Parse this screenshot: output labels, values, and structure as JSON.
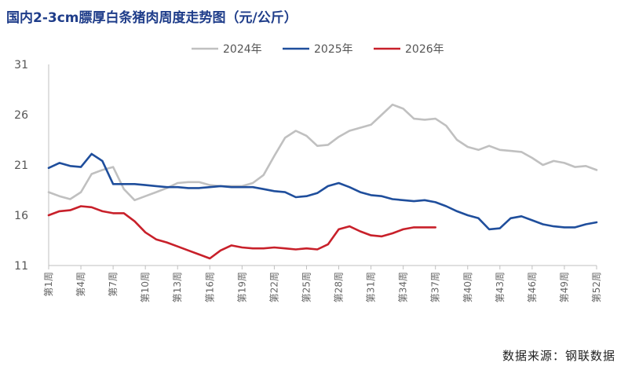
{
  "title": "国内2-3cm膘厚白条猪肉周度走势图（元/公斤）",
  "source": "数据来源：钢联数据",
  "chart_data": {
    "type": "line",
    "ylim": [
      11,
      31
    ],
    "yticks": [
      11,
      16,
      21,
      26,
      31
    ],
    "x": [
      "第1周",
      "第2周",
      "第3周",
      "第4周",
      "第5周",
      "第6周",
      "第7周",
      "第8周",
      "第9周",
      "第10周",
      "第11周",
      "第12周",
      "第13周",
      "第14周",
      "第15周",
      "第16周",
      "第17周",
      "第18周",
      "第19周",
      "第20周",
      "第21周",
      "第22周",
      "第23周",
      "第24周",
      "第25周",
      "第26周",
      "第27周",
      "第28周",
      "第29周",
      "第30周",
      "第31周",
      "第32周",
      "第33周",
      "第34周",
      "第35周",
      "第36周",
      "第37周",
      "第38周",
      "第39周",
      "第40周",
      "第41周",
      "第42周",
      "第43周",
      "第44周",
      "第45周",
      "第46周",
      "第47周",
      "第48周",
      "第49周",
      "第50周",
      "第51周",
      "第52周"
    ],
    "xtick_labels": [
      "第1周",
      "第4周",
      "第7周",
      "第10周",
      "第13周",
      "第16周",
      "第19周",
      "第22周",
      "第25周",
      "第28周",
      "第31周",
      "第34周",
      "第37周",
      "第40周",
      "第43周",
      "第46周",
      "第49周",
      "第52周"
    ],
    "grid": false,
    "legend_position": "top",
    "series": [
      {
        "name": "2024年",
        "color": "#c0c0c0",
        "values": [
          18.3,
          17.9,
          17.6,
          18.3,
          20.1,
          20.5,
          20.8,
          18.6,
          17.5,
          17.9,
          18.3,
          18.7,
          19.2,
          19.3,
          19.3,
          19.0,
          18.9,
          18.9,
          18.9,
          19.2,
          20.0,
          21.9,
          23.7,
          24.4,
          23.9,
          22.9,
          23.0,
          23.8,
          24.4,
          24.7,
          25.0,
          26.0,
          27.0,
          26.6,
          25.6,
          25.5,
          25.6,
          24.9,
          23.5,
          22.8,
          22.5,
          22.9,
          22.5,
          22.4,
          22.3,
          21.7,
          21.0,
          21.4,
          21.2,
          20.8,
          20.9,
          20.5
        ]
      },
      {
        "name": "2025年",
        "color": "#1f4e9c",
        "values": [
          20.7,
          21.2,
          20.9,
          20.8,
          22.1,
          21.4,
          19.1,
          19.1,
          19.1,
          19.0,
          18.9,
          18.8,
          18.8,
          18.7,
          18.7,
          18.8,
          18.9,
          18.8,
          18.8,
          18.8,
          18.6,
          18.4,
          18.3,
          17.8,
          17.9,
          18.2,
          18.9,
          19.2,
          18.8,
          18.3,
          18.0,
          17.9,
          17.6,
          17.5,
          17.4,
          17.5,
          17.3,
          16.9,
          16.4,
          16.0,
          15.7,
          14.6,
          14.7,
          15.7,
          15.9,
          15.5,
          15.1,
          14.9,
          14.8,
          14.8,
          15.1,
          15.3
        ]
      },
      {
        "name": "2026年",
        "color": "#c8202a",
        "values": [
          16.0,
          16.4,
          16.5,
          16.9,
          16.8,
          16.4,
          16.2,
          16.2,
          15.4,
          14.3,
          13.6,
          13.3,
          12.9,
          12.5,
          12.1,
          11.7,
          12.5,
          13.0,
          12.8,
          12.7,
          12.7,
          12.8,
          12.7,
          12.6,
          12.7,
          12.6,
          13.1,
          14.6,
          14.9,
          14.4,
          14.0,
          13.9,
          14.2,
          14.6,
          14.8,
          14.8,
          14.8,
          null,
          null,
          null,
          null,
          null,
          null,
          null,
          null,
          null,
          null,
          null,
          null,
          null,
          null,
          null
        ]
      }
    ]
  }
}
